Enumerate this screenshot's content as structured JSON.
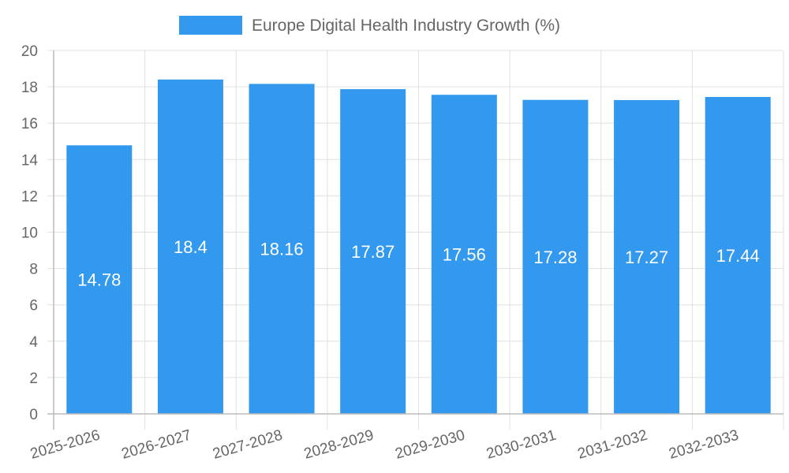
{
  "chart_data": {
    "type": "bar",
    "categories": [
      "2025-2026",
      "2026-2027",
      "2027-2028",
      "2028-2029",
      "2029-2030",
      "2030-2031",
      "2031-2032",
      "2032-2033"
    ],
    "series": [
      {
        "name": "Europe Digital Health Industry Growth (%)",
        "values": [
          14.78,
          18.4,
          18.16,
          17.87,
          17.56,
          17.28,
          17.27,
          17.44
        ],
        "data_labels": [
          "14.78",
          "18.4",
          "18.16",
          "17.87",
          "17.56",
          "17.28",
          "17.27",
          "17.44"
        ]
      }
    ],
    "ylim": [
      0,
      20
    ],
    "y_ticks": [
      "0",
      "2",
      "4",
      "6",
      "8",
      "10",
      "12",
      "14",
      "16",
      "18",
      "20"
    ],
    "grid": true,
    "legend_position": "top-center",
    "bar_color": "#3399ee",
    "grid_color": "#e0e0e0",
    "axis_color": "#bbbbbb",
    "text_color": "#666666"
  }
}
